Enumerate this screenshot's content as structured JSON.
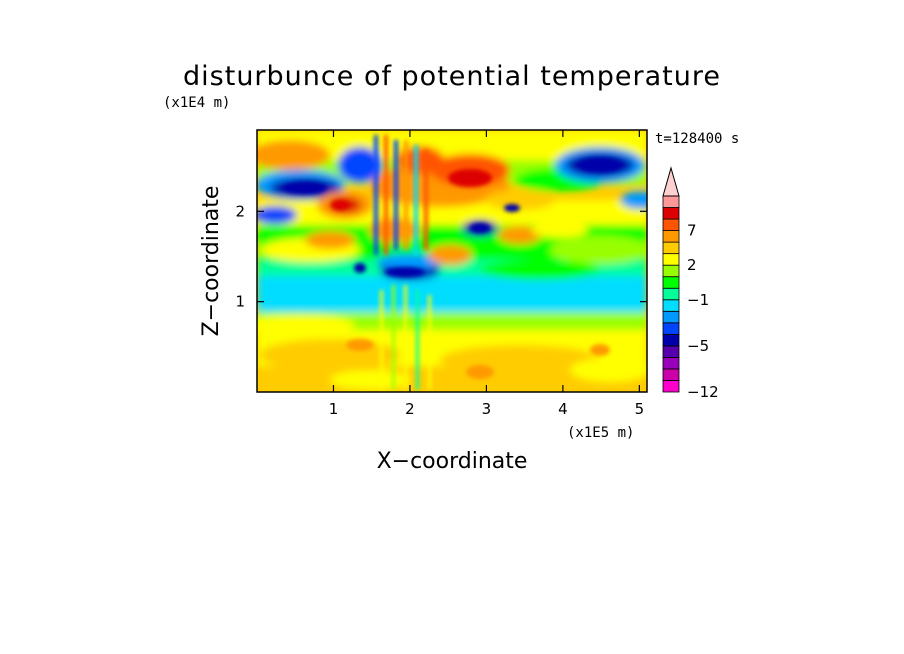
{
  "chart_data": {
    "type": "heatmap",
    "title": "disturbunce of potential temperature",
    "time_label": "t=128400 s",
    "xlabel": "X−coordinate",
    "ylabel": "Z−coordinate",
    "x_scale_label": "(x1E5 m)",
    "y_scale_label": "(x1E4 m)",
    "x_range": [
      0,
      5.1
    ],
    "y_range": [
      0,
      2.9
    ],
    "x_ticks": [
      1,
      2,
      3,
      4,
      5
    ],
    "x_tick_labels": [
      "1",
      "2",
      "3",
      "4",
      "5"
    ],
    "y_ticks": [
      1,
      2
    ],
    "y_tick_labels": [
      "1",
      "2"
    ],
    "colorbar": {
      "levels": [
        -12,
        -10,
        -8,
        -6,
        -5,
        -4,
        -3,
        -2,
        -1,
        0,
        1,
        2,
        3,
        5,
        7,
        9,
        11
      ],
      "tick_values": [
        -12,
        -5,
        -1,
        2,
        7
      ],
      "tick_labels": [
        "−12",
        "−5",
        "−1",
        "2",
        "7"
      ],
      "colors": [
        "#ff00cc",
        "#cc00aa",
        "#9900bb",
        "#5500aa",
        "#0000aa",
        "#0044ff",
        "#0099ff",
        "#00ddff",
        "#00ff99",
        "#00ff00",
        "#99ff00",
        "#ffff00",
        "#ffcc00",
        "#ff9900",
        "#ff5500",
        "#dd0000",
        "#ff9999",
        "#ffd0d0"
      ],
      "extend": "max"
    },
    "features": [
      {
        "x": 0.75,
        "z": 2.45,
        "value": -6
      },
      {
        "x": 1.45,
        "z": 2.62,
        "value": -6
      },
      {
        "x": 4.4,
        "z": 2.55,
        "value": -6
      },
      {
        "x": 2.05,
        "z": 1.35,
        "value": -6
      },
      {
        "x": 3.0,
        "z": 2.45,
        "value": 7
      },
      {
        "x": 2.65,
        "z": 2.2,
        "value": 5
      },
      {
        "x": 1.3,
        "z": 2.05,
        "value": 5
      },
      {
        "x": 2.8,
        "z": 1.15,
        "value": -1
      },
      {
        "x": 2.6,
        "z": 0.45,
        "value": 2
      }
    ]
  }
}
